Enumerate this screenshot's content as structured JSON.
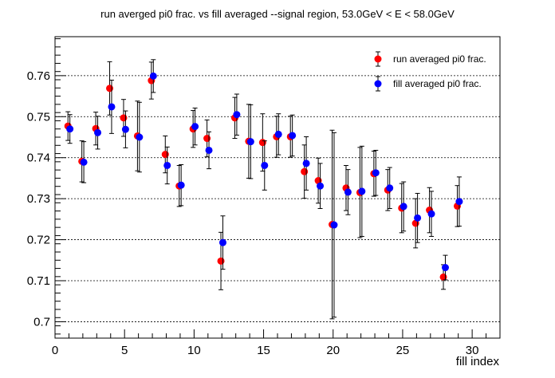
{
  "chart_data": {
    "type": "scatter",
    "title": "run averged pi0 frac. vs fill averaged --signal region, 53.0GeV < E < 58.0GeV",
    "xlabel": "fill index",
    "ylabel": "",
    "xlim": [
      0,
      32
    ],
    "ylim": [
      0.696,
      0.7695
    ],
    "x_ticks": [
      0,
      5,
      10,
      15,
      20,
      25,
      30
    ],
    "y_ticks": [
      0.7,
      0.71,
      0.72,
      0.73,
      0.74,
      0.75,
      0.76
    ],
    "y_tick_labels": [
      "0.7",
      "0.71",
      "0.72",
      "0.73",
      "0.74",
      "0.75",
      "0.76"
    ],
    "grid": "horizontal",
    "legend_position": "top-right",
    "series": [
      {
        "name": "run averaged pi0 frac.",
        "color": "#ff0000",
        "x": [
          1,
          2,
          3,
          4,
          5,
          6,
          7,
          8,
          9,
          10,
          11,
          12,
          13,
          14,
          15,
          16,
          17,
          18,
          19,
          20,
          21,
          22,
          23,
          24,
          25,
          26,
          27,
          28,
          29
        ],
        "y": [
          0.7477,
          0.7391,
          0.7471,
          0.7569,
          0.7497,
          0.7453,
          0.7588,
          0.7408,
          0.7331,
          0.747,
          0.7447,
          0.7148,
          0.7497,
          0.744,
          0.7437,
          0.7451,
          0.7451,
          0.7366,
          0.7344,
          0.7237,
          0.7326,
          0.7315,
          0.7361,
          0.7321,
          0.7277,
          0.724,
          0.7272,
          0.7109,
          0.7282
        ],
        "yerr": [
          0.0035,
          0.005,
          0.004,
          0.0065,
          0.0045,
          0.0085,
          0.0045,
          0.0045,
          0.005,
          0.0045,
          0.0045,
          0.007,
          0.005,
          0.009,
          0.007,
          0.005,
          0.005,
          0.0065,
          0.0055,
          0.023,
          0.0055,
          0.011,
          0.0055,
          0.005,
          0.006,
          0.006,
          0.0055,
          0.003,
          0.005
        ]
      },
      {
        "name": "fill averaged pi0 frac.",
        "color": "#0000ff",
        "x": [
          1,
          2,
          3,
          4,
          5,
          6,
          7,
          8,
          9,
          10,
          11,
          12,
          13,
          14,
          15,
          16,
          17,
          18,
          19,
          20,
          21,
          22,
          23,
          24,
          25,
          26,
          27,
          28,
          29
        ],
        "y": [
          0.747,
          0.7389,
          0.7461,
          0.7524,
          0.7469,
          0.745,
          0.7599,
          0.7381,
          0.7333,
          0.7476,
          0.7418,
          0.7193,
          0.7505,
          0.7439,
          0.7381,
          0.7457,
          0.7454,
          0.7386,
          0.7331,
          0.7236,
          0.7316,
          0.7318,
          0.7363,
          0.7326,
          0.7281,
          0.7253,
          0.7263,
          0.7132,
          0.7293
        ],
        "yerr": [
          0.0035,
          0.005,
          0.004,
          0.0065,
          0.0045,
          0.0085,
          0.004,
          0.0045,
          0.005,
          0.0045,
          0.0045,
          0.0065,
          0.005,
          0.009,
          0.006,
          0.005,
          0.005,
          0.0065,
          0.0055,
          0.0225,
          0.0055,
          0.011,
          0.0055,
          0.005,
          0.006,
          0.006,
          0.0055,
          0.003,
          0.006
        ]
      }
    ]
  }
}
